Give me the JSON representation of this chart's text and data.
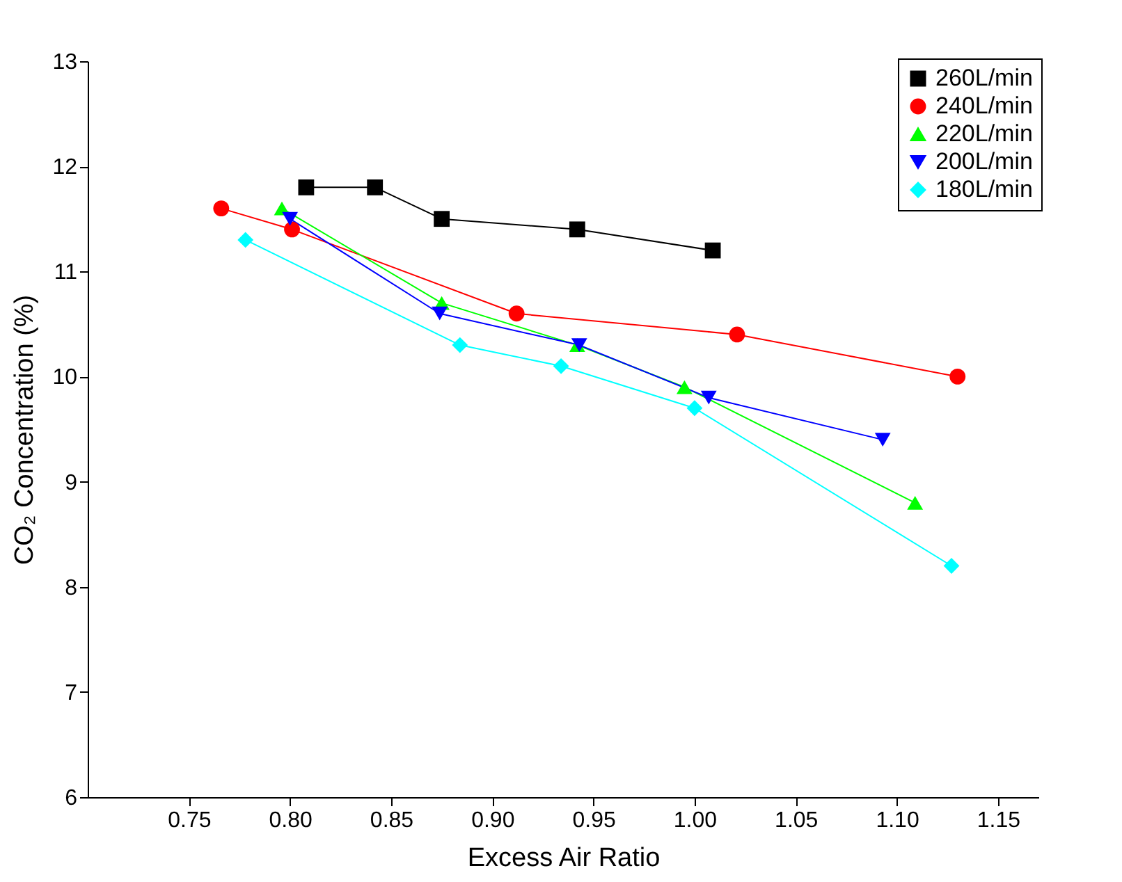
{
  "chart_data": {
    "type": "line",
    "xlabel": "Excess Air Ratio",
    "ylabel": "CO₂ Concentration (%)",
    "xlim": [
      0.7,
      1.17
    ],
    "xticks": [
      0.75,
      {
        "value": 0.8,
        "label": "0.80"
      },
      0.85,
      {
        "value": 0.9,
        "label": "0.90"
      },
      0.95,
      {
        "value": 1.0,
        "label": "1.00"
      },
      1.05,
      {
        "value": 1.1,
        "label": "1.10"
      },
      1.15
    ],
    "ylim": [
      6,
      13
    ],
    "yticks": [
      6,
      7,
      8,
      9,
      10,
      11,
      12,
      13
    ],
    "grid": false,
    "legend": "top right",
    "line_style": "solid",
    "series": [
      {
        "name": "260L/min",
        "color": "#000000",
        "marker": "square",
        "x": [
          0.808,
          0.842,
          0.875,
          0.942,
          1.009
        ],
        "values": [
          11.8,
          11.8,
          11.5,
          11.4,
          11.2
        ]
      },
      {
        "name": "240L/min",
        "color": "#ff0000",
        "marker": "circle",
        "x": [
          0.766,
          0.801,
          0.912,
          1.021,
          1.13
        ],
        "values": [
          11.6,
          11.4,
          10.6,
          10.4,
          10.0
        ]
      },
      {
        "name": "220L/min",
        "color": "#00ff00",
        "marker": "triangle",
        "x": [
          0.796,
          0.875,
          0.942,
          0.995,
          1.109
        ],
        "values": [
          11.6,
          10.7,
          10.3,
          9.9,
          8.8
        ]
      },
      {
        "name": "200L/min",
        "color": "#0000ff",
        "marker": "triangle-down",
        "x": [
          0.8,
          0.874,
          0.943,
          1.007,
          1.093
        ],
        "values": [
          11.5,
          10.6,
          10.3,
          9.8,
          9.4
        ]
      },
      {
        "name": "180L/min",
        "color": "#00ffff",
        "marker": "diamond",
        "x": [
          0.778,
          0.884,
          0.934,
          1.0,
          1.127
        ],
        "values": [
          11.3,
          10.3,
          10.1,
          9.7,
          8.2
        ]
      }
    ]
  }
}
